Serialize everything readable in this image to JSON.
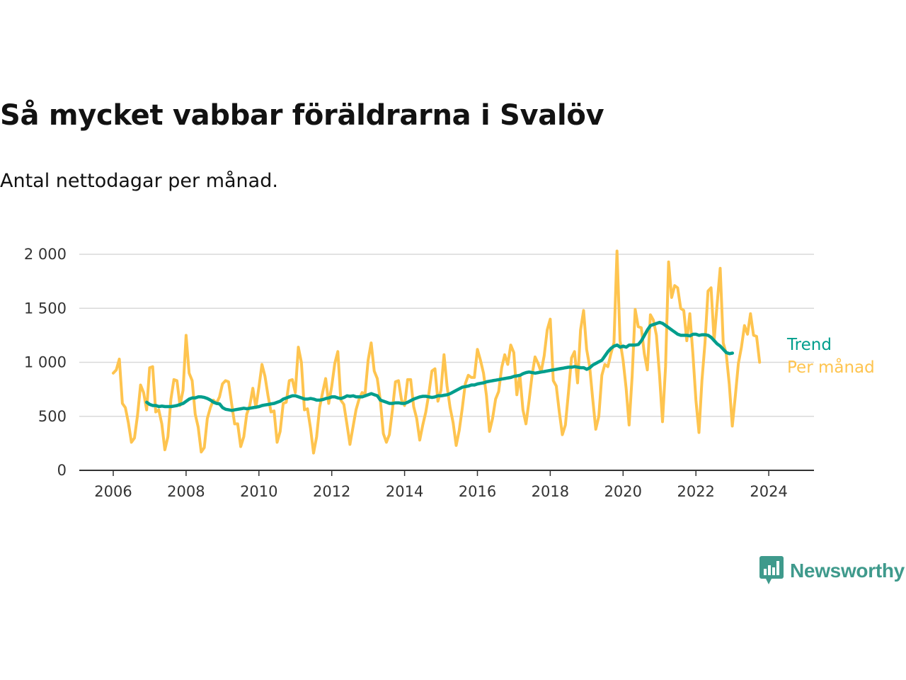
{
  "header": {
    "title": "Så mycket vabbar föräldrarna i Svalöv",
    "subtitle": "Antal nettodagar per månad."
  },
  "brand": {
    "name": "Newsworthy",
    "color": "#3f9a8c"
  },
  "chart_data": {
    "type": "line",
    "title": "Så mycket vabbar föräldrarna i Svalöv",
    "subtitle": "Antal nettodagar per månad.",
    "xlabel": "",
    "ylabel": "",
    "xlim": [
      2006,
      2025.3
    ],
    "ylim": [
      0,
      2000
    ],
    "x_ticks": [
      "2006",
      "2008",
      "2010",
      "2012",
      "2014",
      "2016",
      "2018",
      "2020",
      "2022",
      "2024"
    ],
    "y_ticks": [
      "0",
      "500",
      "1 000",
      "1 500",
      "2 000"
    ],
    "grid": "horizontal",
    "legend": "end-of-line labels, right",
    "series": [
      {
        "name": "Per månad",
        "color": "#fec44f",
        "x_start": 2006.0,
        "step": 0.08333,
        "values": [
          900,
          930,
          1030,
          620,
          580,
          440,
          260,
          300,
          510,
          790,
          720,
          560,
          950,
          960,
          540,
          560,
          430,
          190,
          310,
          660,
          840,
          830,
          600,
          740,
          1250,
          900,
          830,
          520,
          400,
          170,
          210,
          480,
          580,
          650,
          620,
          680,
          800,
          830,
          820,
          620,
          430,
          430,
          220,
          310,
          520,
          600,
          760,
          580,
          770,
          980,
          870,
          690,
          540,
          550,
          260,
          360,
          620,
          630,
          830,
          840,
          720,
          1140,
          1000,
          560,
          570,
          390,
          160,
          310,
          580,
          720,
          850,
          620,
          780,
          990,
          1100,
          650,
          610,
          430,
          240,
          400,
          560,
          660,
          720,
          710,
          1020,
          1180,
          920,
          850,
          650,
          340,
          260,
          330,
          560,
          820,
          830,
          650,
          600,
          840,
          840,
          590,
          480,
          280,
          420,
          540,
          710,
          920,
          940,
          640,
          740,
          1070,
          780,
          580,
          440,
          230,
          370,
          570,
          800,
          880,
          860,
          860,
          1120,
          1020,
          900,
          690,
          360,
          480,
          660,
          730,
          950,
          1070,
          980,
          1160,
          1090,
          700,
          880,
          560,
          430,
          640,
          880,
          1050,
          990,
          910,
          1060,
          1300,
          1400,
          830,
          780,
          540,
          330,
          420,
          720,
          1040,
          1100,
          810,
          1300,
          1480,
          1120,
          960,
          660,
          380,
          500,
          880,
          980,
          960,
          1080,
          1180,
          2030,
          1200,
          1020,
          760,
          420,
          870,
          1490,
          1330,
          1320,
          1080,
          930,
          1440,
          1390,
          1250,
          890,
          450,
          960,
          1930,
          1600,
          1710,
          1690,
          1500,
          1480,
          1200,
          1450,
          1080,
          650,
          350,
          830,
          1180,
          1660,
          1690,
          1200,
          1540,
          1870,
          1180,
          1080,
          800,
          410,
          690,
          990,
          1140,
          1340,
          1260,
          1450,
          1250,
          1240,
          1000
        ]
      },
      {
        "name": "Trend",
        "color": "#009e8c",
        "x_start": 2006.92,
        "step": 0.08333,
        "values": [
          630,
          610,
          600,
          600,
          590,
          595,
          590,
          590,
          590,
          595,
          600,
          610,
          620,
          640,
          660,
          670,
          670,
          680,
          680,
          675,
          665,
          650,
          630,
          620,
          615,
          580,
          565,
          560,
          555,
          560,
          565,
          570,
          575,
          570,
          575,
          580,
          585,
          590,
          600,
          605,
          610,
          615,
          620,
          630,
          640,
          660,
          670,
          680,
          690,
          690,
          680,
          670,
          660,
          660,
          665,
          660,
          650,
          650,
          655,
          665,
          670,
          680,
          680,
          670,
          665,
          675,
          690,
          685,
          690,
          680,
          680,
          680,
          690,
          700,
          710,
          700,
          690,
          650,
          640,
          630,
          620,
          620,
          625,
          625,
          620,
          620,
          630,
          645,
          660,
          670,
          680,
          685,
          685,
          680,
          675,
          680,
          690,
          690,
          695,
          700,
          710,
          725,
          740,
          755,
          770,
          775,
          780,
          790,
          790,
          800,
          805,
          810,
          820,
          825,
          830,
          835,
          840,
          845,
          850,
          855,
          860,
          870,
          875,
          880,
          895,
          905,
          910,
          905,
          900,
          905,
          910,
          915,
          920,
          925,
          930,
          935,
          940,
          945,
          950,
          955,
          955,
          960,
          955,
          950,
          950,
          935,
          950,
          975,
          990,
          1005,
          1020,
          1060,
          1100,
          1130,
          1150,
          1160,
          1140,
          1150,
          1140,
          1160,
          1160,
          1160,
          1165,
          1200,
          1250,
          1300,
          1340,
          1350,
          1360,
          1370,
          1360,
          1340,
          1320,
          1300,
          1280,
          1260,
          1250,
          1250,
          1250,
          1245,
          1260,
          1260,
          1250,
          1255,
          1255,
          1250,
          1230,
          1200,
          1170,
          1150,
          1120,
          1090,
          1080,
          1085
        ]
      }
    ]
  }
}
